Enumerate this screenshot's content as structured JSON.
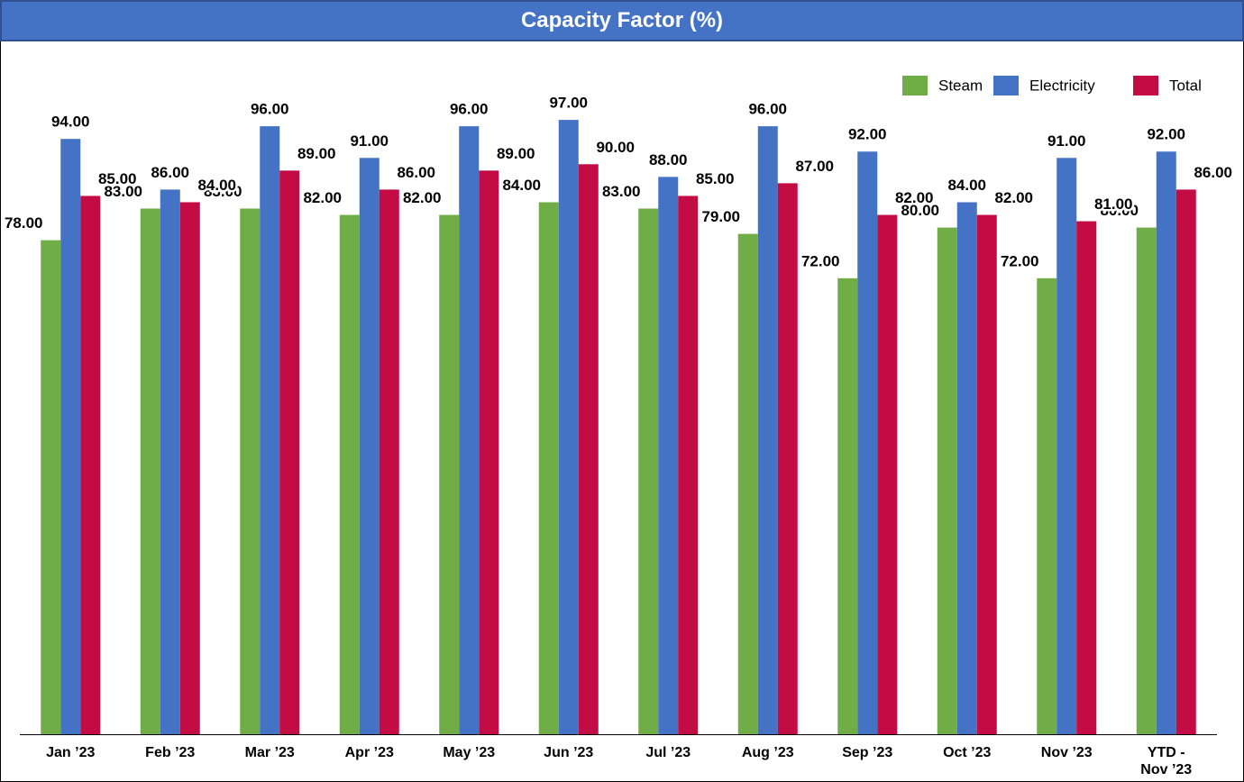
{
  "chart_data": {
    "type": "bar",
    "title": "Capacity Factor (%)",
    "categories": [
      "Jan ’23",
      "Feb ’23",
      "Mar ’23",
      "Apr ’23",
      "May ’23",
      "Jun ’23",
      "Jul ’23",
      "Aug ’23",
      "Sep ’23",
      "Oct ’23",
      "Nov ’23",
      "YTD - Nov ’23"
    ],
    "series": [
      {
        "name": "Steam",
        "color": "#70ad47",
        "values": [
          78,
          83,
          83,
          82,
          82,
          84,
          83,
          79,
          72,
          80,
          72,
          80
        ],
        "value_labels": [
          "78.00",
          "83.00",
          "83.00",
          "82.00",
          "82.00",
          "84.00",
          "83.00",
          "79.00",
          "72.00",
          "80.00",
          "72.00",
          "80.00"
        ]
      },
      {
        "name": "Electricity",
        "color": "#4472c4",
        "values": [
          94,
          86,
          96,
          91,
          96,
          97,
          88,
          96,
          92,
          84,
          91,
          92
        ],
        "value_labels": [
          "94.00",
          "86.00",
          "96.00",
          "91.00",
          "96.00",
          "97.00",
          "88.00",
          "96.00",
          "92.00",
          "84.00",
          "91.00",
          "92.00"
        ]
      },
      {
        "name": "Total",
        "color": "#c30c44",
        "values": [
          85,
          84,
          89,
          86,
          89,
          90,
          85,
          87,
          82,
          82,
          81,
          86
        ],
        "value_labels": [
          "85.00",
          "84.00",
          "89.00",
          "86.00",
          "89.00",
          "90.00",
          "85.00",
          "87.00",
          "82.00",
          "82.00",
          "81.00",
          "86.00"
        ]
      }
    ],
    "ylim": [
      0,
      100
    ],
    "legend": "top-right"
  }
}
